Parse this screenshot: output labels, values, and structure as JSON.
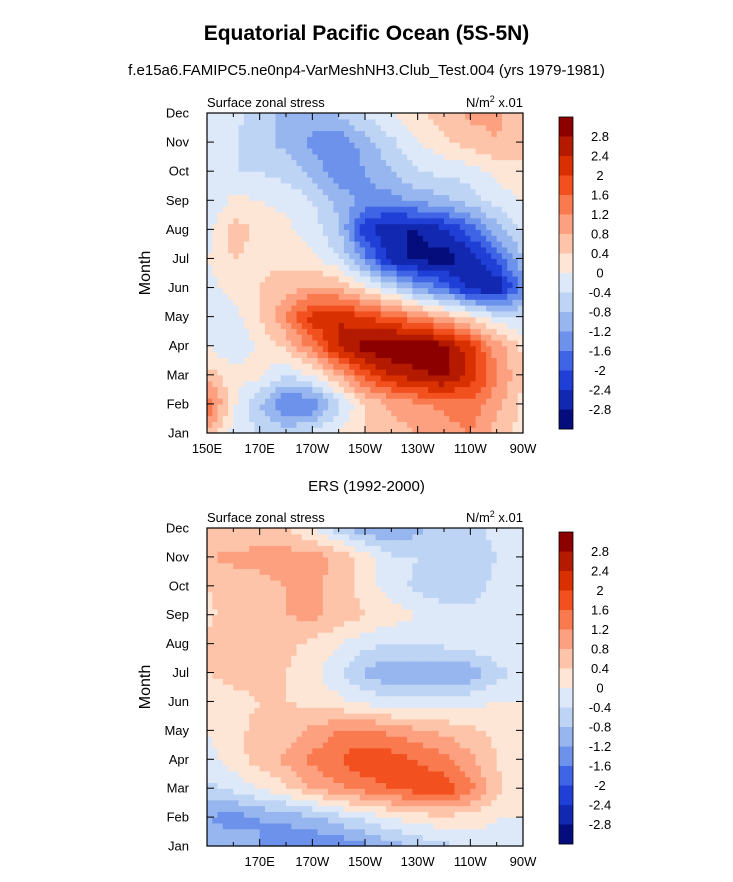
{
  "title": "Equatorial Pacific Ocean (5S-5N)",
  "subtitle": "f.e15a6.FAMIPC5.ne0np4-VarMeshNH3.Club_Test.004 (yrs 1979-1981)",
  "second_title": "ERS (1992-2000)",
  "colorscale": {
    "levels": [
      "2.8",
      "2.4",
      "2",
      "1.6",
      "1.2",
      "0.8",
      "0.4",
      "0",
      "-0.4",
      "-0.8",
      "-1.2",
      "-1.6",
      "-2",
      "-2.4",
      "-2.8"
    ],
    "colors": [
      "#8c0000",
      "#b31a00",
      "#d93000",
      "#f2501e",
      "#fa7a4f",
      "#fca080",
      "#fdc4aa",
      "#fde6d6",
      "#dde9f8",
      "#bed4f4",
      "#97b6ef",
      "#6c92ec",
      "#3f65e6",
      "#1f3fd6",
      "#1228b0",
      "#050d7c"
    ]
  },
  "chart_data": [
    {
      "type": "heatmap",
      "panel": "model",
      "left_label": "Surface zonal stress",
      "right_label_base": "N/m",
      "right_label_sup": "2",
      "right_label_tail": " x.01",
      "ylabel": "Month",
      "x_ticklabels": [
        "150E",
        "170E",
        "170W",
        "150W",
        "130W",
        "110W",
        "90W"
      ],
      "y_ticklabels": [
        "Jan",
        "Feb",
        "Mar",
        "Apr",
        "May",
        "Jun",
        "Jul",
        "Aug",
        "Sep",
        "Oct",
        "Nov",
        "Dec"
      ],
      "xlim": [
        150,
        270
      ],
      "ylim": [
        1,
        12
      ],
      "x": [
        150,
        160,
        170,
        180,
        190,
        200,
        210,
        220,
        230,
        240,
        250,
        260,
        270
      ],
      "y": [
        1,
        2,
        3,
        4,
        5,
        6,
        7,
        8,
        9,
        10,
        11,
        12
      ],
      "z": [
        [
          0.8,
          -0.2,
          -0.4,
          -0.5,
          -0.3,
          0.1,
          0.4,
          0.6,
          0.8,
          1.0,
          1.2,
          0.6,
          0.2
        ],
        [
          1.6,
          0.1,
          -0.8,
          -1.7,
          -1.6,
          -0.5,
          0.4,
          0.9,
          1.1,
          1.3,
          1.5,
          0.9,
          0.3
        ],
        [
          0.6,
          0.2,
          0.1,
          -0.4,
          0.0,
          0.8,
          1.8,
          2.4,
          2.7,
          2.9,
          2.3,
          1.3,
          0.4
        ],
        [
          0.0,
          -0.4,
          0.1,
          0.5,
          1.4,
          2.5,
          3.0,
          3.2,
          3.1,
          3.0,
          2.1,
          1.0,
          0.3
        ],
        [
          -0.4,
          -0.2,
          0.4,
          1.2,
          2.2,
          2.4,
          2.0,
          1.7,
          1.2,
          0.8,
          0.3,
          -0.2,
          -0.4
        ],
        [
          -0.2,
          0.2,
          0.4,
          0.6,
          0.9,
          0.7,
          0.2,
          -0.4,
          -1.2,
          -1.7,
          -2.6,
          -2.8,
          -1.5
        ],
        [
          0.0,
          0.4,
          0.3,
          0.3,
          0.1,
          -0.3,
          -1.4,
          -2.6,
          -2.9,
          -3.0,
          -2.7,
          -1.9,
          -0.8
        ],
        [
          -0.2,
          0.6,
          0.3,
          0.1,
          -0.2,
          -0.8,
          -2.3,
          -2.8,
          -2.8,
          -2.5,
          -1.8,
          -1.0,
          -0.3
        ],
        [
          -0.4,
          0.1,
          0.0,
          -0.1,
          -0.4,
          -0.9,
          -1.4,
          -1.4,
          -1.1,
          -0.9,
          -0.6,
          -0.2,
          0.0
        ],
        [
          -0.2,
          -0.4,
          -0.4,
          -0.6,
          -0.9,
          -1.6,
          -1.2,
          -0.8,
          -0.4,
          -0.3,
          -0.2,
          0.1,
          0.3
        ],
        [
          -0.1,
          -0.3,
          -0.7,
          -0.9,
          -1.3,
          -1.5,
          -1.0,
          -0.5,
          0.0,
          0.3,
          0.6,
          0.8,
          0.5
        ],
        [
          0.0,
          -0.3,
          -0.6,
          -0.9,
          -1.0,
          -0.7,
          -0.3,
          0.0,
          0.3,
          0.6,
          0.9,
          0.9,
          0.4
        ]
      ]
    },
    {
      "type": "heatmap",
      "panel": "ERS",
      "left_label": "Surface zonal stress",
      "right_label_base": "N/m",
      "right_label_sup": "2",
      "right_label_tail": " x.01",
      "ylabel": "Month",
      "x_ticklabels": [
        "170E",
        "170W",
        "150W",
        "130W",
        "110W",
        "90W"
      ],
      "y_ticklabels": [
        "Jan",
        "Feb",
        "Mar",
        "Apr",
        "May",
        "Jun",
        "Jul",
        "Aug",
        "Sep",
        "Oct",
        "Nov",
        "Dec"
      ],
      "xlim": [
        150,
        270
      ],
      "ylim": [
        1,
        12
      ],
      "x": [
        150,
        160,
        170,
        180,
        190,
        200,
        210,
        220,
        230,
        240,
        250,
        260,
        270
      ],
      "y": [
        1,
        2,
        3,
        4,
        5,
        6,
        7,
        8,
        9,
        10,
        11,
        12
      ],
      "z": [
        [
          -0.9,
          -1.0,
          -1.2,
          -1.5,
          -1.6,
          -1.5,
          -1.3,
          -1.0,
          -0.7,
          -0.5,
          -0.3,
          -0.1,
          0.0
        ],
        [
          -1.2,
          -1.4,
          -1.2,
          -1.1,
          -0.9,
          -0.6,
          -0.3,
          0.0,
          0.2,
          0.3,
          0.2,
          0.0,
          0.0
        ],
        [
          -0.5,
          -0.3,
          0.0,
          0.3,
          0.8,
          1.1,
          1.4,
          1.6,
          1.8,
          1.9,
          1.4,
          0.5,
          0.1
        ],
        [
          -0.2,
          0.2,
          0.6,
          0.9,
          1.3,
          1.6,
          1.9,
          1.8,
          1.6,
          1.3,
          0.9,
          0.4,
          0.1
        ],
        [
          0.0,
          0.3,
          0.5,
          0.6,
          0.9,
          1.2,
          1.3,
          1.1,
          0.9,
          0.7,
          0.5,
          0.3,
          0.1
        ],
        [
          0.2,
          0.3,
          0.4,
          0.4,
          0.3,
          0.1,
          -0.1,
          -0.3,
          -0.3,
          -0.2,
          -0.1,
          0.0,
          0.0
        ],
        [
          0.4,
          0.5,
          0.5,
          0.4,
          0.1,
          -0.3,
          -0.9,
          -1.1,
          -1.2,
          -1.3,
          -1.1,
          -0.6,
          -0.2
        ],
        [
          0.5,
          0.6,
          0.7,
          0.5,
          0.3,
          0.0,
          -0.3,
          -0.4,
          -0.4,
          -0.3,
          -0.2,
          0.0,
          0.0
        ],
        [
          0.3,
          0.6,
          0.8,
          0.8,
          0.9,
          0.7,
          0.4,
          0.2,
          0.0,
          -0.2,
          -0.3,
          -0.1,
          0.0
        ],
        [
          0.4,
          0.6,
          0.7,
          0.8,
          0.9,
          0.6,
          0.2,
          -0.2,
          -0.5,
          -0.7,
          -0.6,
          -0.3,
          0.0
        ],
        [
          0.8,
          0.9,
          0.9,
          1.0,
          1.0,
          0.7,
          0.2,
          -0.3,
          -0.4,
          -0.5,
          -0.6,
          -0.4,
          -0.1
        ],
        [
          0.4,
          0.5,
          0.6,
          0.4,
          0.0,
          -0.6,
          -1.1,
          -1.3,
          -0.9,
          -0.6,
          -0.5,
          -0.3,
          0.0
        ]
      ]
    }
  ]
}
